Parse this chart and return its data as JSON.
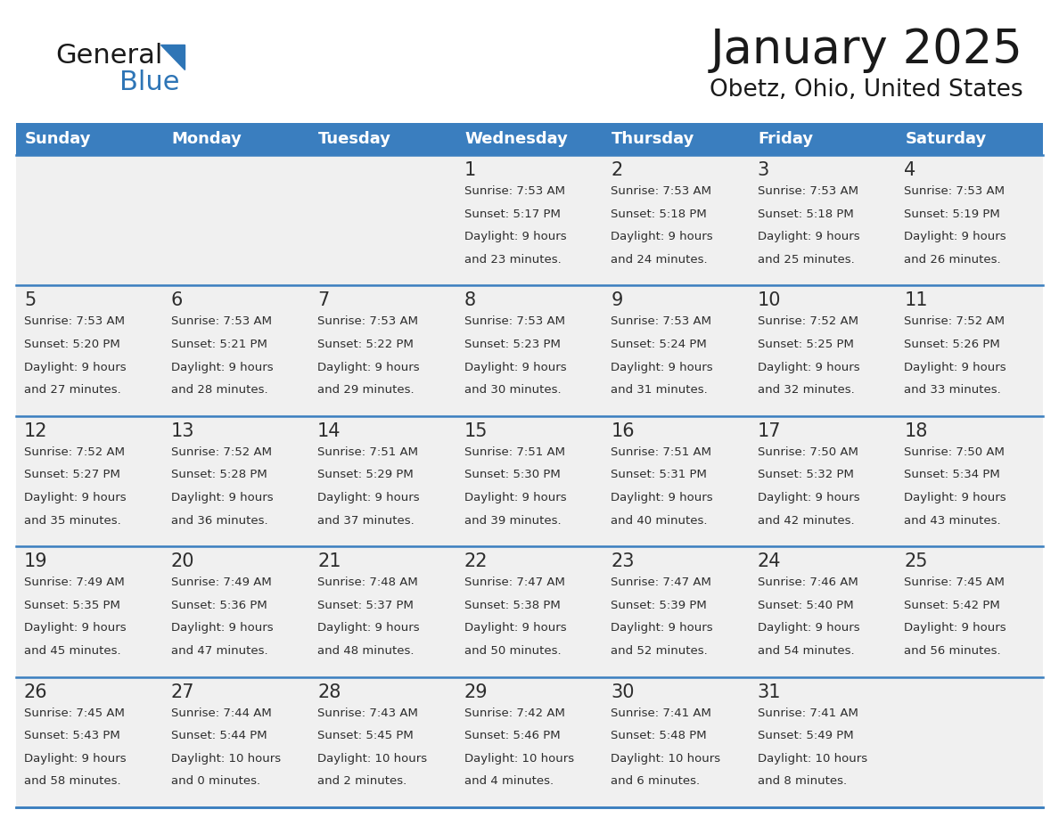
{
  "title": "January 2025",
  "subtitle": "Obetz, Ohio, United States",
  "header_color": "#3a7ebf",
  "header_text_color": "#ffffff",
  "cell_bg_color": "#f0f0f0",
  "border_color": "#3a7ebf",
  "day_names": [
    "Sunday",
    "Monday",
    "Tuesday",
    "Wednesday",
    "Thursday",
    "Friday",
    "Saturday"
  ],
  "weeks": [
    [
      {
        "day": "",
        "sunrise": "",
        "sunset": "",
        "daylight": ""
      },
      {
        "day": "",
        "sunrise": "",
        "sunset": "",
        "daylight": ""
      },
      {
        "day": "",
        "sunrise": "",
        "sunset": "",
        "daylight": ""
      },
      {
        "day": "1",
        "sunrise": "7:53 AM",
        "sunset": "5:17 PM",
        "daylight": "9 hours\nand 23 minutes."
      },
      {
        "day": "2",
        "sunrise": "7:53 AM",
        "sunset": "5:18 PM",
        "daylight": "9 hours\nand 24 minutes."
      },
      {
        "day": "3",
        "sunrise": "7:53 AM",
        "sunset": "5:18 PM",
        "daylight": "9 hours\nand 25 minutes."
      },
      {
        "day": "4",
        "sunrise": "7:53 AM",
        "sunset": "5:19 PM",
        "daylight": "9 hours\nand 26 minutes."
      }
    ],
    [
      {
        "day": "5",
        "sunrise": "7:53 AM",
        "sunset": "5:20 PM",
        "daylight": "9 hours\nand 27 minutes."
      },
      {
        "day": "6",
        "sunrise": "7:53 AM",
        "sunset": "5:21 PM",
        "daylight": "9 hours\nand 28 minutes."
      },
      {
        "day": "7",
        "sunrise": "7:53 AM",
        "sunset": "5:22 PM",
        "daylight": "9 hours\nand 29 minutes."
      },
      {
        "day": "8",
        "sunrise": "7:53 AM",
        "sunset": "5:23 PM",
        "daylight": "9 hours\nand 30 minutes."
      },
      {
        "day": "9",
        "sunrise": "7:53 AM",
        "sunset": "5:24 PM",
        "daylight": "9 hours\nand 31 minutes."
      },
      {
        "day": "10",
        "sunrise": "7:52 AM",
        "sunset": "5:25 PM",
        "daylight": "9 hours\nand 32 minutes."
      },
      {
        "day": "11",
        "sunrise": "7:52 AM",
        "sunset": "5:26 PM",
        "daylight": "9 hours\nand 33 minutes."
      }
    ],
    [
      {
        "day": "12",
        "sunrise": "7:52 AM",
        "sunset": "5:27 PM",
        "daylight": "9 hours\nand 35 minutes."
      },
      {
        "day": "13",
        "sunrise": "7:52 AM",
        "sunset": "5:28 PM",
        "daylight": "9 hours\nand 36 minutes."
      },
      {
        "day": "14",
        "sunrise": "7:51 AM",
        "sunset": "5:29 PM",
        "daylight": "9 hours\nand 37 minutes."
      },
      {
        "day": "15",
        "sunrise": "7:51 AM",
        "sunset": "5:30 PM",
        "daylight": "9 hours\nand 39 minutes."
      },
      {
        "day": "16",
        "sunrise": "7:51 AM",
        "sunset": "5:31 PM",
        "daylight": "9 hours\nand 40 minutes."
      },
      {
        "day": "17",
        "sunrise": "7:50 AM",
        "sunset": "5:32 PM",
        "daylight": "9 hours\nand 42 minutes."
      },
      {
        "day": "18",
        "sunrise": "7:50 AM",
        "sunset": "5:34 PM",
        "daylight": "9 hours\nand 43 minutes."
      }
    ],
    [
      {
        "day": "19",
        "sunrise": "7:49 AM",
        "sunset": "5:35 PM",
        "daylight": "9 hours\nand 45 minutes."
      },
      {
        "day": "20",
        "sunrise": "7:49 AM",
        "sunset": "5:36 PM",
        "daylight": "9 hours\nand 47 minutes."
      },
      {
        "day": "21",
        "sunrise": "7:48 AM",
        "sunset": "5:37 PM",
        "daylight": "9 hours\nand 48 minutes."
      },
      {
        "day": "22",
        "sunrise": "7:47 AM",
        "sunset": "5:38 PM",
        "daylight": "9 hours\nand 50 minutes."
      },
      {
        "day": "23",
        "sunrise": "7:47 AM",
        "sunset": "5:39 PM",
        "daylight": "9 hours\nand 52 minutes."
      },
      {
        "day": "24",
        "sunrise": "7:46 AM",
        "sunset": "5:40 PM",
        "daylight": "9 hours\nand 54 minutes."
      },
      {
        "day": "25",
        "sunrise": "7:45 AM",
        "sunset": "5:42 PM",
        "daylight": "9 hours\nand 56 minutes."
      }
    ],
    [
      {
        "day": "26",
        "sunrise": "7:45 AM",
        "sunset": "5:43 PM",
        "daylight": "9 hours\nand 58 minutes."
      },
      {
        "day": "27",
        "sunrise": "7:44 AM",
        "sunset": "5:44 PM",
        "daylight": "10 hours\nand 0 minutes."
      },
      {
        "day": "28",
        "sunrise": "7:43 AM",
        "sunset": "5:45 PM",
        "daylight": "10 hours\nand 2 minutes."
      },
      {
        "day": "29",
        "sunrise": "7:42 AM",
        "sunset": "5:46 PM",
        "daylight": "10 hours\nand 4 minutes."
      },
      {
        "day": "30",
        "sunrise": "7:41 AM",
        "sunset": "5:48 PM",
        "daylight": "10 hours\nand 6 minutes."
      },
      {
        "day": "31",
        "sunrise": "7:41 AM",
        "sunset": "5:49 PM",
        "daylight": "10 hours\nand 8 minutes."
      },
      {
        "day": "",
        "sunrise": "",
        "sunset": "",
        "daylight": ""
      }
    ]
  ],
  "title_fontsize": 38,
  "subtitle_fontsize": 19,
  "header_fontsize": 13,
  "day_num_fontsize": 15,
  "cell_text_fontsize": 9.5
}
